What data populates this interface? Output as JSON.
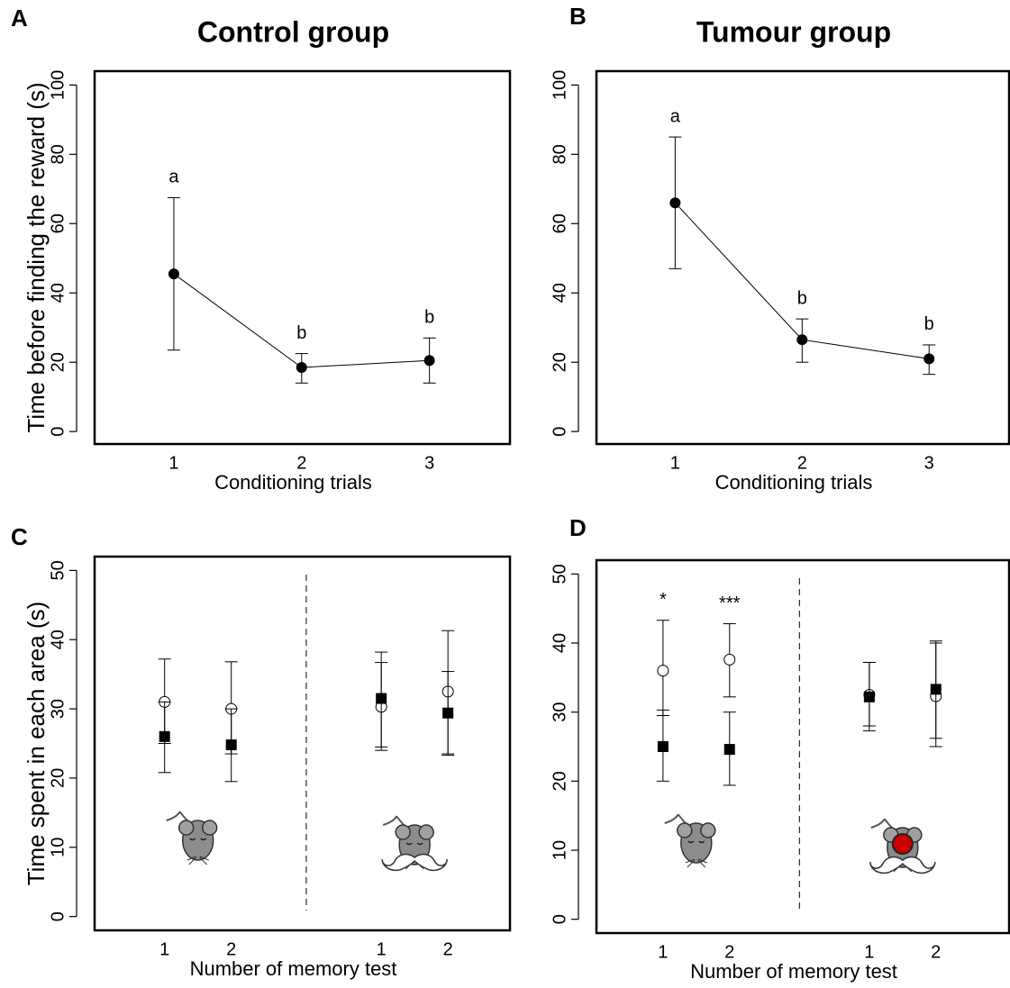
{
  "chart_data": [
    {
      "type": "line",
      "panel": "A",
      "title": "Control group",
      "ylabel": "Time before finding the reward (s)",
      "xlabel": "Conditioning trials",
      "x": [
        1,
        2,
        3
      ],
      "xlim": [
        0.38,
        3.63
      ],
      "xticks": [
        1,
        2,
        3
      ],
      "ylim": [
        -3.6,
        104
      ],
      "yticks": [
        0,
        20,
        40,
        60,
        80,
        100
      ],
      "series": [
        {
          "color": "#000000",
          "marker": "filled-circle",
          "values": [
            45.5,
            18.5,
            20.5
          ],
          "error_low": [
            23.5,
            14,
            14
          ],
          "error_high": [
            67.5,
            22.5,
            27
          ],
          "labels": [
            "a",
            "b",
            "b"
          ]
        }
      ]
    },
    {
      "type": "line",
      "panel": "B",
      "title": "Tumour group",
      "xlabel": "Conditioning trials",
      "x": [
        1,
        2,
        3
      ],
      "xlim": [
        0.38,
        3.63
      ],
      "xticks": [
        1,
        2,
        3
      ],
      "ylim": [
        -3.6,
        104
      ],
      "yticks": [
        0,
        20,
        40,
        60,
        80,
        100
      ],
      "series": [
        {
          "color": "#000000",
          "marker": "filled-circle",
          "values": [
            66,
            26.5,
            21
          ],
          "error_low": [
            47,
            20,
            16.5
          ],
          "error_high": [
            85,
            32.5,
            25
          ],
          "labels": [
            "a",
            "b",
            "b"
          ]
        }
      ]
    },
    {
      "type": "scatter",
      "panel": "C",
      "ylabel": "Time spent in each area (s)",
      "xlabel": "Number of memory test",
      "x": [
        1,
        2,
        4.25,
        5.25
      ],
      "xlim": [
        -0.05,
        6.18
      ],
      "xticks": [
        1,
        2,
        {
          "value": 4.25,
          "label": "1"
        },
        {
          "value": 5.25,
          "label": "2"
        }
      ],
      "ylim": [
        -2,
        52
      ],
      "yticks": [
        0,
        10,
        20,
        30,
        40,
        50
      ],
      "series": [
        {
          "color": "#000000",
          "marker": "open-circle",
          "values": [
            31,
            30,
            30.3,
            32.5
          ],
          "error_low": [
            25,
            23.5,
            24,
            23.5
          ],
          "error_high": [
            37.2,
            36.8,
            36.7,
            41.3
          ]
        },
        {
          "color": "#000000",
          "marker": "filled-square",
          "values": [
            26,
            24.8,
            31.5,
            29.4
          ],
          "error_low": [
            20.8,
            19.5,
            24.5,
            23.3
          ],
          "error_high": [
            31,
            30,
            38.2,
            35.4
          ]
        }
      ]
    },
    {
      "type": "scatter",
      "panel": "D",
      "xlabel": "Number of memory test",
      "x": [
        1,
        2,
        4.1,
        5.1
      ],
      "xlim": [
        0,
        6.2
      ],
      "xticks": [
        1,
        2,
        {
          "value": 4.1,
          "label": "1"
        },
        {
          "value": 5.1,
          "label": "2"
        }
      ],
      "ylim": [
        -2,
        52
      ],
      "yticks": [
        0,
        10,
        20,
        30,
        40,
        50
      ],
      "series": [
        {
          "color": "#000000",
          "marker": "open-circle",
          "values": [
            36,
            37.6,
            32.5,
            32.3
          ],
          "error_low": [
            29.5,
            32.2,
            28,
            25
          ],
          "error_high": [
            43.3,
            42.8,
            37.2,
            40.3
          ],
          "labels": [
            "*",
            "***",
            null,
            null
          ]
        },
        {
          "color": "#000000",
          "marker": "filled-square",
          "values": [
            25,
            24.6,
            32.2,
            33.3
          ],
          "error_low": [
            20,
            19.4,
            27.3,
            26.2
          ],
          "error_high": [
            30.3,
            30,
            37.2,
            40
          ]
        }
      ]
    }
  ]
}
